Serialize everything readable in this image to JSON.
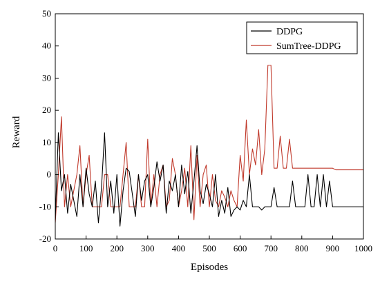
{
  "chart_data": {
    "type": "line",
    "title": "",
    "xlabel": "Episodes",
    "ylabel": "Reward",
    "xlim": [
      0,
      1000
    ],
    "ylim": [
      -20,
      50
    ],
    "xticks": [
      0,
      100,
      200,
      300,
      400,
      500,
      600,
      700,
      800,
      900,
      1000
    ],
    "yticks": [
      -20,
      -10,
      0,
      10,
      20,
      30,
      40,
      50
    ],
    "grid": false,
    "legend_position": "top-right",
    "x": [
      0,
      10,
      20,
      30,
      40,
      50,
      60,
      70,
      80,
      90,
      100,
      110,
      120,
      130,
      140,
      150,
      160,
      170,
      180,
      190,
      200,
      210,
      220,
      230,
      240,
      250,
      260,
      270,
      280,
      290,
      300,
      310,
      320,
      330,
      340,
      350,
      360,
      370,
      380,
      390,
      400,
      410,
      420,
      430,
      440,
      450,
      460,
      470,
      480,
      490,
      500,
      510,
      520,
      530,
      540,
      550,
      560,
      570,
      580,
      590,
      600,
      610,
      620,
      630,
      640,
      650,
      660,
      670,
      680,
      690,
      700,
      710,
      720,
      730,
      740,
      750,
      760,
      770,
      780,
      790,
      800,
      810,
      820,
      830,
      840,
      850,
      860,
      870,
      880,
      890,
      900,
      910,
      920,
      930,
      940,
      950,
      960,
      970,
      980,
      990,
      1000
    ],
    "series": [
      {
        "name": "DDPG",
        "color": "#000000",
        "values": [
          -14,
          13,
          -5,
          0,
          -12,
          -3,
          -8,
          -13,
          0,
          -10,
          2,
          -6,
          -10,
          -2,
          -15,
          -4,
          13,
          -10,
          -2,
          -12,
          0,
          -16,
          -5,
          2,
          1,
          -6,
          -13,
          0,
          -8,
          -2,
          0,
          -10,
          -4,
          4,
          -2,
          3,
          -12,
          -2,
          -5,
          0,
          -10,
          3,
          -6,
          1,
          -12,
          -2,
          9,
          -5,
          -9,
          -3,
          -6,
          -10,
          0,
          -13,
          -8,
          -12,
          -4,
          -13,
          -11,
          -10,
          -11,
          -8,
          -10,
          0,
          -10,
          -10,
          -10,
          -11,
          -10,
          -10,
          -10,
          -4,
          -10,
          -10,
          -10,
          -10,
          -10,
          -2,
          -10,
          -10,
          -10,
          -10,
          0,
          -10,
          -10,
          0,
          -10,
          0,
          -10,
          -2,
          -10,
          -10,
          -10,
          -10,
          -10,
          -10,
          -10,
          -10,
          -10,
          -10,
          -10
        ]
      },
      {
        "name": "SumTree-DDPG",
        "color": "#c0392b",
        "values": [
          -15,
          0,
          18,
          -10,
          0,
          -10,
          -5,
          0,
          9,
          -10,
          0,
          6,
          -10,
          -10,
          -10,
          -10,
          0,
          0,
          -10,
          -10,
          -10,
          -10,
          0,
          10,
          -10,
          -10,
          -10,
          0,
          -10,
          -10,
          11,
          -10,
          0,
          -10,
          0,
          3,
          -10,
          -8,
          5,
          0,
          -10,
          -5,
          2,
          -10,
          9,
          -14,
          6,
          -10,
          0,
          3,
          -10,
          0,
          -8,
          -10,
          -5,
          -7,
          -10,
          -5,
          -8,
          -10,
          6,
          -2,
          17,
          0,
          8,
          3,
          14,
          0,
          8,
          34,
          34,
          2,
          2,
          12,
          2,
          2,
          11,
          2,
          2,
          2,
          2,
          2,
          2,
          2,
          2,
          2,
          2,
          2,
          2,
          2,
          2,
          1.5,
          1.5,
          1.5,
          1.5,
          1.5,
          1.5,
          1.5,
          1.5,
          1.5,
          1.5
        ]
      }
    ]
  }
}
